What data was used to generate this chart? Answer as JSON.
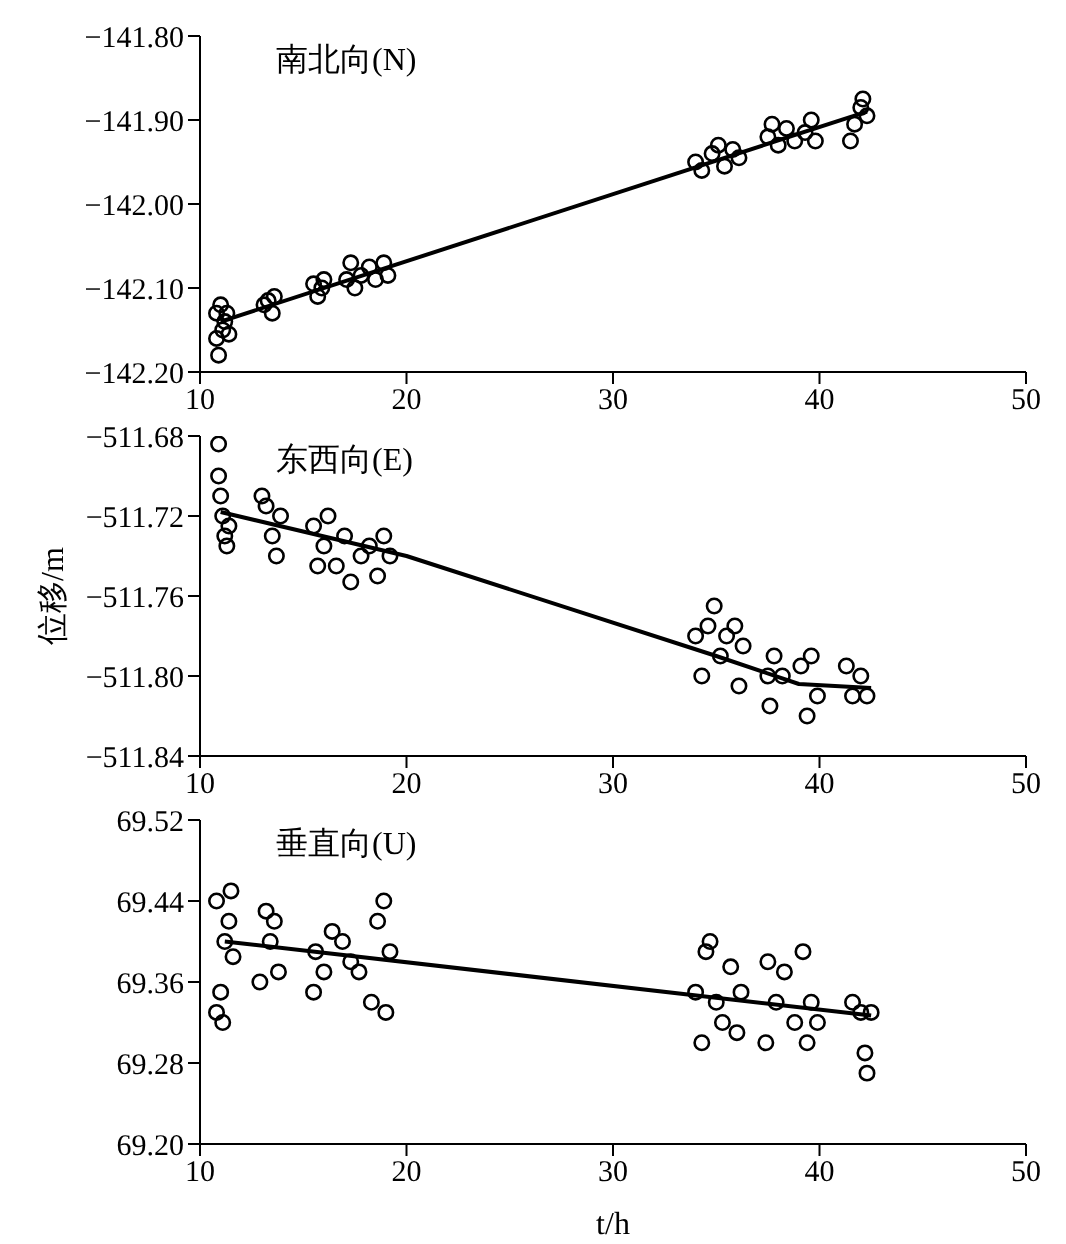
{
  "chart_data": [
    {
      "type": "scatter",
      "title": "南北向(N)",
      "xlim": [
        10,
        50
      ],
      "xticks": [
        10,
        20,
        30,
        40,
        50
      ],
      "ylim": [
        -142.2,
        -141.8
      ],
      "yticks": [
        {
          "value": -142.2,
          "label": "−142.20"
        },
        {
          "value": -142.1,
          "label": "−142.10"
        },
        {
          "value": -142.0,
          "label": "−142.00"
        },
        {
          "value": -141.9,
          "label": "−141.90"
        },
        {
          "value": -141.8,
          "label": "−141.80"
        }
      ],
      "series": [
        {
          "marker": "circle",
          "color": "#000000",
          "x": [
            10.8,
            10.8,
            10.9,
            11.0,
            11.1,
            11.2,
            11.3,
            11.4,
            13.1,
            13.3,
            13.5,
            13.6,
            15.5,
            15.7,
            15.9,
            16.0,
            17.1,
            17.3,
            17.5,
            17.8,
            18.2,
            18.5,
            18.9,
            19.1,
            34.0,
            34.3,
            34.8,
            35.1,
            35.4,
            35.8,
            36.1,
            37.5,
            37.7,
            38.0,
            38.4,
            38.8,
            39.3,
            39.6,
            39.8,
            41.5,
            41.7,
            42.0,
            42.1,
            42.3
          ],
          "values": [
            -142.13,
            -142.16,
            -142.18,
            -142.12,
            -142.15,
            -142.14,
            -142.13,
            -142.155,
            -142.12,
            -142.115,
            -142.13,
            -142.11,
            -142.095,
            -142.11,
            -142.1,
            -142.09,
            -142.09,
            -142.07,
            -142.1,
            -142.085,
            -142.075,
            -142.09,
            -142.07,
            -142.085,
            -141.95,
            -141.96,
            -141.94,
            -141.93,
            -141.955,
            -141.935,
            -141.945,
            -141.92,
            -141.905,
            -141.93,
            -141.91,
            -141.925,
            -141.915,
            -141.9,
            -141.925,
            -141.925,
            -141.905,
            -141.885,
            -141.875,
            -141.895
          ]
        },
        {
          "type": "line",
          "marker": "none",
          "color": "#000000",
          "x": [
            11.0,
            42.3
          ],
          "values": [
            -142.14,
            -141.89
          ]
        }
      ]
    },
    {
      "type": "scatter",
      "title": "东西向(E)",
      "ylabel": "位移/m",
      "xlim": [
        10,
        50
      ],
      "xticks": [
        10,
        20,
        30,
        40,
        50
      ],
      "ylim": [
        -511.84,
        -511.68
      ],
      "yticks": [
        {
          "value": -511.84,
          "label": "−511.84"
        },
        {
          "value": -511.8,
          "label": "−511.80"
        },
        {
          "value": -511.76,
          "label": "−511.76"
        },
        {
          "value": -511.72,
          "label": "−511.72"
        },
        {
          "value": -511.68,
          "label": "−511.68"
        }
      ],
      "series": [
        {
          "marker": "circle",
          "color": "#000000",
          "x": [
            10.9,
            10.9,
            11.0,
            11.1,
            11.2,
            11.3,
            11.4,
            13.0,
            13.2,
            13.5,
            13.7,
            13.9,
            15.5,
            15.7,
            16.0,
            16.2,
            16.6,
            17.0,
            17.3,
            17.8,
            18.2,
            18.6,
            18.9,
            19.2,
            34.0,
            34.3,
            34.6,
            34.9,
            35.2,
            35.5,
            35.9,
            36.1,
            36.3,
            37.5,
            37.6,
            37.8,
            38.2,
            39.1,
            39.4,
            39.6,
            39.9,
            41.3,
            41.6,
            42.0,
            42.3
          ],
          "values": [
            -511.684,
            -511.7,
            -511.71,
            -511.72,
            -511.73,
            -511.735,
            -511.725,
            -511.71,
            -511.715,
            -511.73,
            -511.74,
            -511.72,
            -511.725,
            -511.745,
            -511.735,
            -511.72,
            -511.745,
            -511.73,
            -511.753,
            -511.74,
            -511.735,
            -511.75,
            -511.73,
            -511.74,
            -511.78,
            -511.8,
            -511.775,
            -511.765,
            -511.79,
            -511.78,
            -511.775,
            -511.805,
            -511.785,
            -511.8,
            -511.815,
            -511.79,
            -511.8,
            -511.795,
            -511.82,
            -511.79,
            -511.81,
            -511.795,
            -511.81,
            -511.8,
            -511.81
          ]
        },
        {
          "type": "line",
          "marker": "none",
          "color": "#000000",
          "x": [
            11.0,
            20.0,
            35.0,
            39.0,
            42.5
          ],
          "values": [
            -511.718,
            -511.74,
            -511.79,
            -511.804,
            -511.806
          ]
        }
      ]
    },
    {
      "type": "scatter",
      "title": "垂直向(U)",
      "xlabel": "t/h",
      "xlim": [
        10,
        50
      ],
      "xticks": [
        10,
        20,
        30,
        40,
        50
      ],
      "ylim": [
        69.2,
        69.52
      ],
      "yticks": [
        {
          "value": 69.2,
          "label": "69.20"
        },
        {
          "value": 69.28,
          "label": "69.28"
        },
        {
          "value": 69.36,
          "label": "69.36"
        },
        {
          "value": 69.44,
          "label": "69.44"
        },
        {
          "value": 69.52,
          "label": "69.52"
        }
      ],
      "series": [
        {
          "marker": "circle",
          "color": "#000000",
          "x": [
            10.8,
            10.8,
            11.0,
            11.1,
            11.2,
            11.4,
            11.5,
            11.6,
            12.9,
            13.2,
            13.4,
            13.6,
            13.8,
            15.5,
            15.6,
            16.0,
            16.4,
            16.9,
            17.3,
            17.7,
            18.3,
            18.6,
            18.9,
            19.0,
            19.2,
            34.0,
            34.3,
            34.5,
            34.7,
            35.0,
            35.3,
            35.7,
            36.0,
            36.2,
            37.4,
            37.5,
            37.9,
            38.3,
            38.8,
            39.2,
            39.4,
            39.6,
            39.9,
            41.6,
            42.0,
            42.2,
            42.3,
            42.5
          ],
          "values": [
            69.44,
            69.33,
            69.35,
            69.32,
            69.4,
            69.42,
            69.45,
            69.385,
            69.36,
            69.43,
            69.4,
            69.42,
            69.37,
            69.35,
            69.39,
            69.37,
            69.41,
            69.4,
            69.38,
            69.37,
            69.34,
            69.42,
            69.44,
            69.33,
            69.39,
            69.35,
            69.3,
            69.39,
            69.4,
            69.34,
            69.32,
            69.375,
            69.31,
            69.35,
            69.3,
            69.38,
            69.34,
            69.37,
            69.32,
            69.39,
            69.3,
            69.34,
            69.32,
            69.34,
            69.33,
            69.29,
            69.27,
            69.33
          ]
        },
        {
          "type": "line",
          "marker": "none",
          "color": "#000000",
          "x": [
            11.2,
            42.5
          ],
          "values": [
            69.4,
            69.327
          ]
        }
      ]
    }
  ]
}
